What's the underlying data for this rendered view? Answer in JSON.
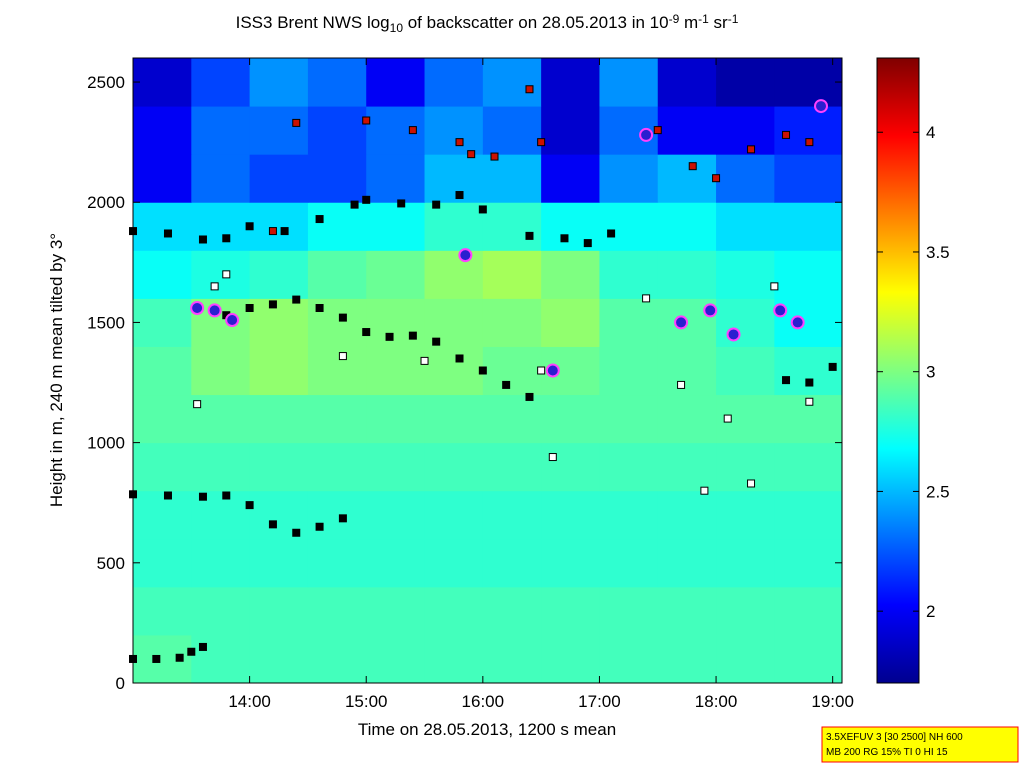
{
  "chart_data": {
    "type": "heatmap",
    "title": [
      "ISS3 Brent NWS log",
      "10",
      " of backscatter on 28.05.2013 in 10",
      "-9",
      " m",
      "-1",
      " sr",
      "-1"
    ],
    "title_scripts": [
      "base",
      "sub",
      "base",
      "sup",
      "base",
      "sup",
      "base",
      "sup"
    ],
    "x_label": "Time on 28.05.2013, 1200 s mean",
    "y_label": "Height in m, 240 m mean tilted by 3°",
    "annotation": [
      "3.5XEFUV 3 [30 2500] NH 600",
      "MB 200 RG 15% TI 0 HI 15"
    ],
    "xlim": [
      13,
      19.08
    ],
    "xticks": [
      {
        "value": 14,
        "label": "14:00"
      },
      {
        "value": 15,
        "label": "15:00"
      },
      {
        "value": 16,
        "label": "16:00"
      },
      {
        "value": 17,
        "label": "17:00"
      },
      {
        "value": 18,
        "label": "18:00"
      },
      {
        "value": 19,
        "label": "19:00"
      }
    ],
    "ylim": [
      0,
      2600
    ],
    "yticks": [
      0,
      500,
      1000,
      1500,
      2000,
      2500
    ],
    "clim": [
      1.7,
      4.31
    ],
    "cticks": [
      2,
      2.5,
      3,
      3.5,
      4
    ],
    "colormap": "jet",
    "x_edges": [
      13,
      13.5,
      14,
      14.5,
      15,
      15.5,
      16,
      16.5,
      17,
      17.5,
      18,
      18.5,
      19.08
    ],
    "y_edges": [
      0,
      200,
      400,
      600,
      800,
      1000,
      1200,
      1400,
      1600,
      1800,
      2000,
      2200,
      2400,
      2600
    ],
    "z": [
      [
        2.9,
        2.85,
        2.85,
        2.85,
        2.85,
        2.85,
        2.85,
        2.85,
        2.85,
        2.85,
        2.85,
        2.85
      ],
      [
        2.85,
        2.85,
        2.85,
        2.85,
        2.85,
        2.85,
        2.85,
        2.85,
        2.85,
        2.85,
        2.85,
        2.85
      ],
      [
        2.8,
        2.8,
        2.8,
        2.8,
        2.8,
        2.8,
        2.8,
        2.8,
        2.8,
        2.8,
        2.8,
        2.8
      ],
      [
        2.8,
        2.8,
        2.8,
        2.8,
        2.8,
        2.8,
        2.8,
        2.8,
        2.8,
        2.8,
        2.8,
        2.8
      ],
      [
        2.85,
        2.85,
        2.85,
        2.85,
        2.85,
        2.85,
        2.85,
        2.85,
        2.85,
        2.85,
        2.85,
        2.85
      ],
      [
        2.9,
        2.9,
        2.9,
        2.9,
        2.9,
        2.9,
        2.9,
        2.9,
        2.9,
        2.9,
        2.9,
        2.9
      ],
      [
        2.9,
        3.0,
        3.05,
        3.0,
        3.0,
        3.0,
        2.95,
        2.95,
        2.9,
        2.9,
        2.85,
        2.8
      ],
      [
        2.85,
        3.0,
        3.05,
        3.0,
        3.0,
        3.0,
        3.0,
        3.05,
        2.9,
        2.9,
        2.8,
        2.7
      ],
      [
        2.7,
        2.75,
        2.8,
        2.9,
        2.95,
        3.05,
        3.1,
        3.0,
        2.8,
        2.8,
        2.75,
        2.7
      ],
      [
        2.6,
        2.6,
        2.6,
        2.7,
        2.7,
        2.8,
        2.8,
        2.7,
        2.7,
        2.7,
        2.6,
        2.6
      ],
      [
        2.0,
        2.3,
        2.2,
        2.2,
        2.3,
        2.5,
        2.5,
        2.0,
        2.4,
        2.5,
        2.3,
        2.2
      ],
      [
        2.0,
        2.3,
        2.3,
        2.2,
        2.3,
        2.4,
        2.3,
        1.9,
        2.3,
        2.0,
        2.0,
        2.1
      ],
      [
        1.9,
        2.2,
        2.4,
        2.3,
        2.0,
        2.3,
        2.4,
        1.9,
        2.4,
        1.9,
        1.8,
        1.8
      ]
    ],
    "series": [
      {
        "color": "#000000",
        "marker": "square",
        "x": [
          13,
          13.2,
          13.4,
          13.5,
          13.6
        ],
        "values": [
          100,
          100,
          105,
          130,
          150
        ]
      },
      {
        "color": "#000000",
        "marker": "square",
        "x": [
          13,
          13.3,
          13.6,
          13.8,
          14.0,
          14.2,
          14.4,
          14.6,
          14.8
        ],
        "values": [
          785,
          780,
          775,
          780,
          740,
          660,
          625,
          650,
          685
        ]
      },
      {
        "color": "#000000",
        "marker": "square",
        "x": [
          13.8,
          14.0,
          14.2,
          14.4,
          14.6,
          14.8,
          15.0,
          15.2,
          15.4,
          15.6,
          15.8,
          16.0,
          16.2,
          16.4,
          18.6,
          18.8,
          19.0
        ],
        "values": [
          1530,
          1560,
          1575,
          1595,
          1560,
          1520,
          1460,
          1440,
          1445,
          1420,
          1350,
          1300,
          1240,
          1190,
          1260,
          1250,
          1315
        ]
      },
      {
        "color": "#000000",
        "marker": "square",
        "x": [
          13,
          13.3,
          13.6,
          13.8,
          14.0,
          14.3,
          14.6,
          14.9,
          15.0,
          15.3,
          15.6,
          15.8,
          16.0,
          16.4,
          16.7,
          16.9,
          17.1
        ],
        "values": [
          1880,
          1870,
          1845,
          1850,
          1900,
          1880,
          1930,
          1990,
          2010,
          1995,
          1990,
          2030,
          1970,
          1860,
          1850,
          1830,
          1870
        ]
      },
      {
        "color": "#cc1100",
        "marker": "square",
        "x": [
          14.2,
          14.4,
          15.0,
          15.4,
          15.8,
          15.9,
          16.1,
          16.4,
          16.5,
          17.5,
          17.8,
          18.0,
          18.3,
          18.6,
          18.8
        ],
        "values": [
          1880,
          2330,
          2340,
          2300,
          2250,
          2200,
          2190,
          2470,
          2250,
          2300,
          2150,
          2100,
          2220,
          2280,
          2250
        ]
      },
      {
        "color": "#ffffff",
        "marker": "square",
        "x": [
          13.55,
          13.7,
          13.8,
          14.8,
          15.5,
          15.85,
          16.5,
          16.6,
          17.4,
          17.7,
          17.9,
          18.1,
          18.3,
          18.5,
          18.8
        ],
        "values": [
          1160,
          1650,
          1700,
          1360,
          1340,
          1780,
          1300,
          940,
          1600,
          1240,
          800,
          1100,
          830,
          1650,
          1170
        ]
      },
      {
        "color": "#2a1fd0",
        "marker": "circle",
        "x": [
          13.55,
          13.7,
          13.85,
          15.85,
          16.6,
          17.4,
          17.7,
          17.95,
          18.15,
          18.55,
          18.7,
          18.9
        ],
        "values": [
          1560,
          1550,
          1510,
          1780,
          1300,
          2280,
          1500,
          1550,
          1450,
          1550,
          1500,
          2400
        ]
      }
    ]
  }
}
